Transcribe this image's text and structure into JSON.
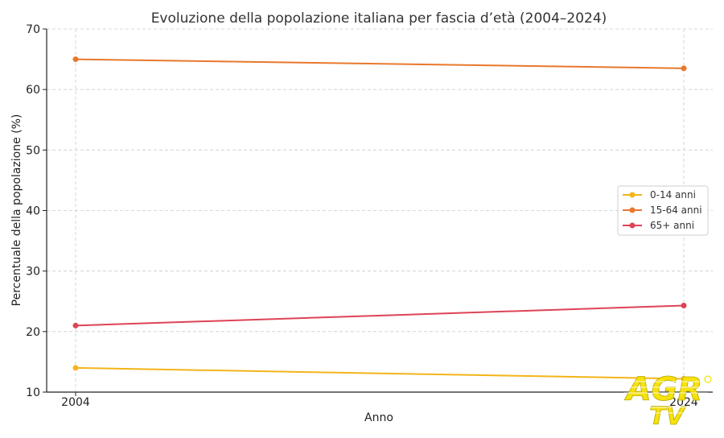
{
  "chart_data": {
    "type": "line",
    "title": "Evoluzione della popolazione italiana per fascia d’età (2004–2024)",
    "xlabel": "Anno",
    "ylabel": "Percentuale della popolazione (%)",
    "x": [
      2004,
      2024
    ],
    "x_ticks": [
      "2004",
      "2024"
    ],
    "ylim": [
      10,
      70
    ],
    "y_ticks": [
      10,
      20,
      30,
      40,
      50,
      60,
      70
    ],
    "grid": true,
    "legend_position": "center-right",
    "series": [
      {
        "name": "0-14 anni",
        "color": "#f4b41a",
        "values": [
          14.0,
          12.2
        ]
      },
      {
        "name": "15-64 anni",
        "color": "#e8782d",
        "values": [
          65.0,
          63.5
        ]
      },
      {
        "name": "65+ anni",
        "color": "#de4356",
        "values": [
          21.0,
          24.3
        ]
      }
    ]
  },
  "watermark": {
    "logo_text_1": "AGR",
    "logo_text_2": "TV",
    "color": "#f5e000"
  }
}
